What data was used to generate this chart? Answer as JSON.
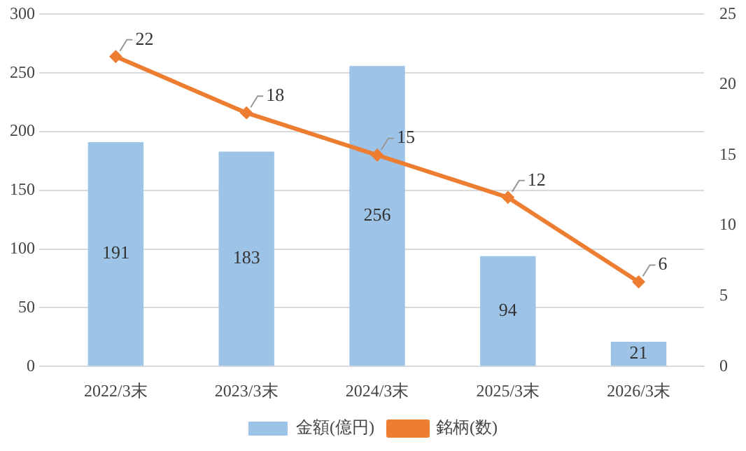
{
  "chart_data": {
    "type": "bar",
    "categories": [
      "2022/3末",
      "2023/3末",
      "2024/3末",
      "2025/3末",
      "2026/3末"
    ],
    "series": [
      {
        "name": "金額(億円)",
        "color": "#9dc3e6",
        "values": [
          191,
          183,
          256,
          94,
          21
        ]
      },
      {
        "name": "銘柄(数)",
        "type": "line",
        "axis": "y2",
        "color": "#ed7d31",
        "marker": "diamond",
        "values": [
          22,
          18,
          15,
          12,
          6
        ]
      }
    ],
    "ylim": [
      0,
      300
    ],
    "yticks": [
      0,
      50,
      100,
      150,
      200,
      250,
      300
    ],
    "y2lim": [
      0,
      25
    ],
    "y2ticks": [
      0,
      5,
      10,
      15,
      20,
      25
    ],
    "grid": "y",
    "legend": "bottom",
    "data_labels": true
  }
}
